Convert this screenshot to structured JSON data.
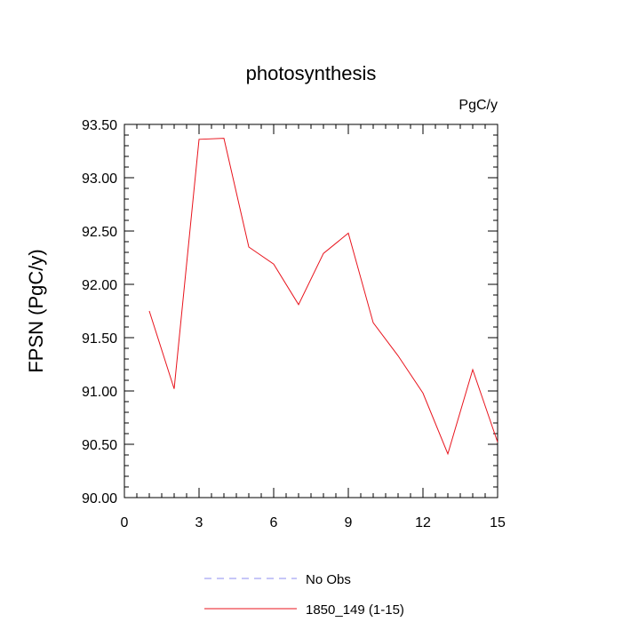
{
  "chart_data": {
    "type": "line",
    "title": "photosynthesis",
    "units_label": "PgC/y",
    "ylabel": "FPSN  (PgC/y)",
    "xlabel": "",
    "xlim": [
      0,
      15
    ],
    "ylim": [
      90.0,
      93.5
    ],
    "x_ticks": [
      "0",
      "3",
      "6",
      "9",
      "12",
      "15"
    ],
    "y_ticks": [
      "90.00",
      "90.50",
      "91.00",
      "91.50",
      "92.00",
      "92.50",
      "93.00",
      "93.50"
    ],
    "grid": false,
    "legend_position": "bottom",
    "series": [
      {
        "name": "1850_149 (1-15)",
        "color": "#e8131c",
        "style": "solid",
        "x": [
          1,
          2,
          3,
          4,
          5,
          6,
          7,
          8,
          9,
          10,
          11,
          12,
          13,
          14,
          15
        ],
        "values": [
          91.75,
          91.02,
          93.36,
          93.37,
          92.35,
          92.19,
          91.81,
          92.29,
          92.48,
          91.64,
          91.33,
          90.98,
          90.41,
          91.2,
          90.52
        ]
      },
      {
        "name": "No Obs",
        "color": "#8c8cf0",
        "style": "dashed",
        "x": [],
        "values": []
      }
    ]
  }
}
